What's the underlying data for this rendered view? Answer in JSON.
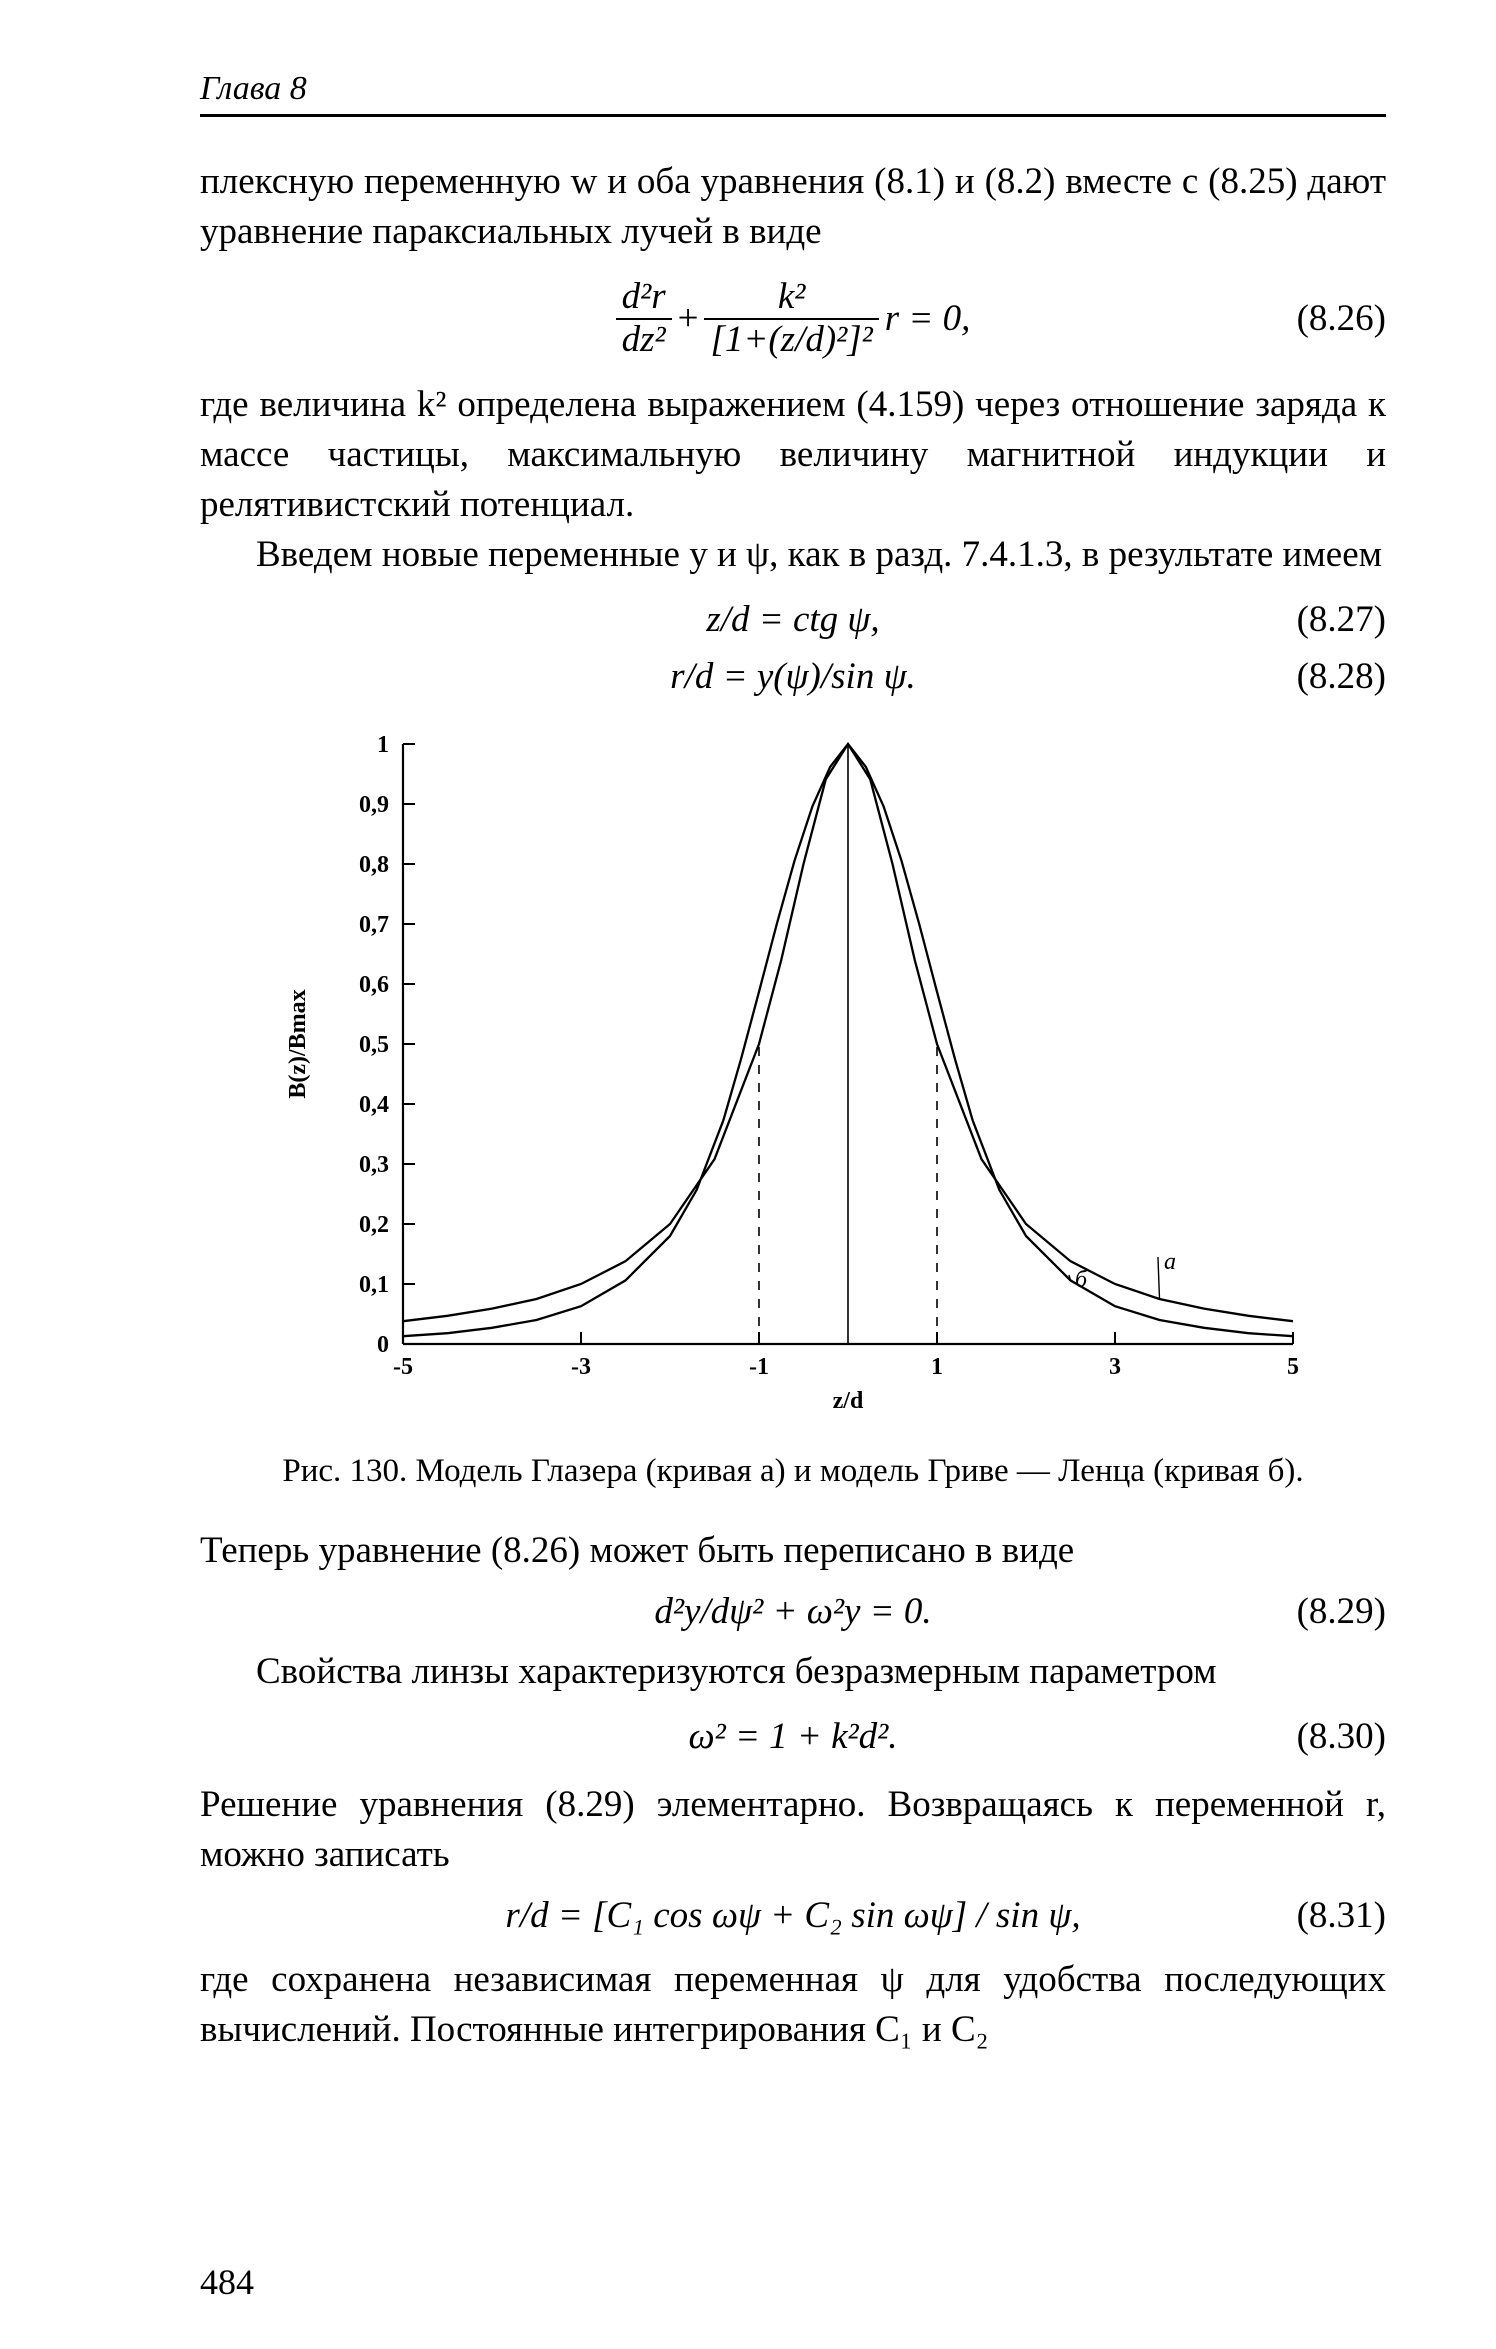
{
  "header": {
    "chapter": "Глава 8"
  },
  "page_number": "484",
  "p1": "плексную переменную w и оба уравнения (8.1) и (8.2) вместе с (8.25) дают уравнение параксиальных лучей в виде",
  "p2": "где величина k² определена выражением (4.159) через отношение заряда к массе частицы, максимальную величину магнитной индукции и релятивистский потенциал.",
  "p3": "Введем новые переменные y и ψ, как в разд. 7.4.1.3, в результате имеем",
  "p4": "Теперь уравнение (8.26) может быть переписано   в виде",
  "p5": "Свойства линзы характеризуются безразмерным   параметром",
  "p6": "Решение уравнения (8.29) элементарно. Возвращаясь к переменной r, можно записать",
  "p7": "где сохранена независимая переменная ψ для удобства последующих вычислений. Постоянные интегрирования C₁ и C₂",
  "eq": {
    "n26": "(8.26)",
    "n27": "(8.27)",
    "n28": "(8.28)",
    "n29": "(8.29)",
    "n30": "(8.30)",
    "n31": "(8.31)",
    "e27": "z/d = ctg ψ,",
    "e28": "r/d = y(ψ)/sin ψ.",
    "e29": "d²y/dψ² + ω²y = 0.",
    "e30": "ω² = 1 + k²d².",
    "e31": "r/d = [C₁ cos ωψ + C₂ sin ωψ] / sin ψ,",
    "e26_num1": "d²r",
    "e26_den1": "dz²",
    "e26_num2": "k²",
    "e26_den2": "[1+(z/d)²]²",
    "e26_tail": "r = 0,"
  },
  "caption": "Рис. 130. Модель Глазера (кривая а) и модель Гриве — Ленца (кривая б).",
  "chart": {
    "type": "line",
    "xlabel": "z/d",
    "ylabel": "B(z)/Bmax",
    "xlim": [
      -5,
      5
    ],
    "ylim": [
      0,
      1
    ],
    "xticks": [
      -5,
      -3,
      -1,
      1,
      3,
      5
    ],
    "yticks": [
      0,
      0.1,
      0.2,
      0.3,
      0.4,
      0.5,
      0.6,
      0.7,
      0.8,
      0.9,
      1
    ],
    "ytick_labels": [
      "0",
      "0,1",
      "0,2",
      "0,3",
      "0,4",
      "0,5",
      "0,6",
      "0,7",
      "0,8",
      "0,9",
      "1"
    ],
    "background": "#ffffff",
    "axis_color": "#000000",
    "dash_x_positions": [
      -1,
      1
    ],
    "line_width": 2.3,
    "label_fontsize": 24,
    "tick_fontsize": 24,
    "series": {
      "a": {
        "label": "а",
        "label_pos": [
          3.55,
          0.135
        ],
        "x": [
          -5,
          -4.5,
          -4,
          -3.5,
          -3,
          -2.5,
          -2,
          -1.5,
          -1,
          -0.75,
          -0.5,
          -0.25,
          0,
          0.25,
          0.5,
          0.75,
          1,
          1.5,
          2,
          2.5,
          3,
          3.5,
          4,
          4.5,
          5
        ],
        "y": [
          0.038,
          0.047,
          0.059,
          0.075,
          0.1,
          0.138,
          0.2,
          0.308,
          0.5,
          0.64,
          0.8,
          0.941,
          1,
          0.941,
          0.8,
          0.64,
          0.5,
          0.308,
          0.2,
          0.138,
          0.1,
          0.075,
          0.059,
          0.047,
          0.038
        ]
      },
      "b": {
        "label": "б",
        "label_pos": [
          2.55,
          0.105
        ],
        "x": [
          -5,
          -4.5,
          -4,
          -3.5,
          -3,
          -2.5,
          -2,
          -1.7,
          -1.4,
          -1.2,
          -1,
          -0.8,
          -0.6,
          -0.4,
          -0.2,
          0,
          0.2,
          0.4,
          0.6,
          0.8,
          1,
          1.2,
          1.4,
          1.7,
          2,
          2.5,
          3,
          3.5,
          4,
          4.5,
          5
        ],
        "y": [
          0.013,
          0.018,
          0.027,
          0.04,
          0.063,
          0.106,
          0.18,
          0.257,
          0.373,
          0.476,
          0.587,
          0.7,
          0.806,
          0.896,
          0.962,
          1,
          0.962,
          0.896,
          0.806,
          0.7,
          0.587,
          0.476,
          0.373,
          0.257,
          0.18,
          0.106,
          0.063,
          0.04,
          0.027,
          0.018,
          0.013
        ]
      }
    }
  }
}
